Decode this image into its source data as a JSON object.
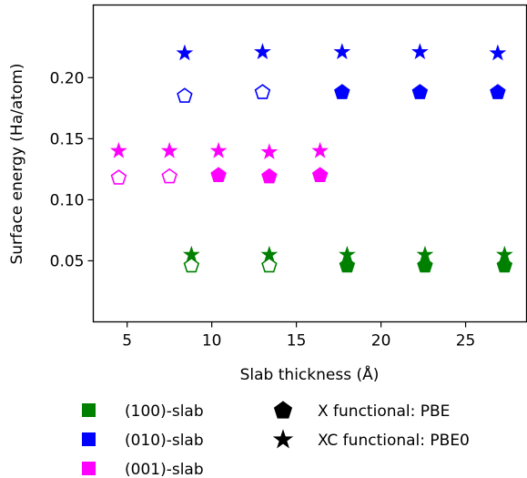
{
  "chart_data": {
    "type": "scatter",
    "xlabel": "Slab thickness (Å)",
    "ylabel": "Surface energy (Ha/atom)",
    "xlim": [
      3.0,
      28.6
    ],
    "ylim": [
      0.0,
      0.2595
    ],
    "xticks": [
      5,
      10,
      15,
      20,
      25
    ],
    "yticks": [
      0.05,
      0.1,
      0.15,
      0.2
    ],
    "xtick_labels": [
      "5",
      "10",
      "15",
      "20",
      "25"
    ],
    "ytick_labels": [
      "0.05",
      "0.10",
      "0.15",
      "0.20"
    ],
    "grid": false,
    "legend_position": "below plot",
    "series": [
      {
        "name": "(100)-slab",
        "color": "#008000",
        "pbe": {
          "x": [
            8.8,
            13.4,
            18.0,
            22.6,
            27.3
          ],
          "y": [
            0.046,
            0.046,
            0.046,
            0.046,
            0.046
          ],
          "filled": [
            false,
            false,
            true,
            true,
            true
          ]
        },
        "pbe0": {
          "x": [
            8.8,
            13.4,
            18.0,
            22.6,
            27.3
          ],
          "y": [
            0.055,
            0.055,
            0.055,
            0.055,
            0.055
          ]
        }
      },
      {
        "name": "(010)-slab",
        "color": "#0000ff",
        "pbe": {
          "x": [
            8.4,
            13.0,
            17.7,
            22.3,
            26.9
          ],
          "y": [
            0.185,
            0.188,
            0.188,
            0.188,
            0.188
          ],
          "filled": [
            false,
            false,
            true,
            true,
            true
          ]
        },
        "pbe0": {
          "x": [
            8.4,
            13.0,
            17.7,
            22.3,
            26.9
          ],
          "y": [
            0.22,
            0.221,
            0.221,
            0.221,
            0.22
          ]
        }
      },
      {
        "name": "(001)-slab",
        "color": "#ff00ff",
        "pbe": {
          "x": [
            4.5,
            7.5,
            10.4,
            13.4,
            16.4
          ],
          "y": [
            0.118,
            0.119,
            0.12,
            0.119,
            0.12
          ],
          "filled": [
            false,
            false,
            true,
            true,
            true
          ]
        },
        "pbe0": {
          "x": [
            4.5,
            7.5,
            10.4,
            13.4,
            16.4
          ],
          "y": [
            0.14,
            0.14,
            0.14,
            0.139,
            0.14
          ]
        }
      }
    ],
    "legend": {
      "slab_entries": [
        "(100)-slab",
        "(010)-slab",
        "(001)-slab"
      ],
      "marker_entries": [
        {
          "label": "X functional: PBE",
          "marker": "pentagon"
        },
        {
          "label": "XC functional: PBE0",
          "marker": "star"
        }
      ]
    }
  }
}
